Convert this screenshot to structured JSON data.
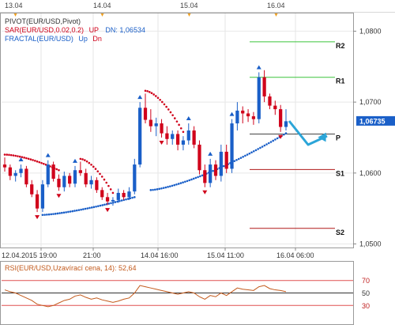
{
  "top_dates": [
    "13.04",
    "14.04",
    "15.04",
    "16.04"
  ],
  "legend": {
    "pivot": "PIVOT(EUR/USD,Pivot)",
    "sar_name": "SAR(EUR/USD,0.02,0.2)",
    "sar_up": "UP",
    "sar_dn": "DN: 1,06534",
    "fractal_name": "FRACTAL(EUR/USD)",
    "fractal_up": "Up",
    "fractal_dn": "Dn"
  },
  "colors": {
    "bull": "#1a5fc8",
    "bear": "#d0021b",
    "sar": "#d0021b",
    "sar_up": "#1a5fc8",
    "fractal": "#1a5fc8",
    "r_lines": "#3cc43c",
    "pivot_line": "#444444",
    "s_lines": "#b01818",
    "rsi_line": "#c35a1c",
    "arrow": "#2ba5d8",
    "price_tag": "#1a5fc8"
  },
  "chart_data": {
    "type": "candlestick",
    "x_tick_labels": [
      "12.04.2015 19:00",
      "21:00",
      "14.04 16:00",
      "15.04 11:00",
      "16.04 06:00"
    ],
    "y_ticks": [
      "1,0800",
      "1,0700",
      "1,0600",
      "1,0500"
    ],
    "ylim": [
      1.0495,
      1.0825
    ],
    "current_price": "1,06735",
    "pivot_levels": [
      {
        "label": "R2",
        "value": 1.0785
      },
      {
        "label": "R1",
        "value": 1.0735
      },
      {
        "label": "P",
        "value": 1.0655
      },
      {
        "label": "S1",
        "value": 1.0605
      },
      {
        "label": "S2",
        "value": 1.0522
      }
    ],
    "candles": [
      [
        1.0612,
        1.0622,
        1.0602,
        1.0608
      ],
      [
        1.0608,
        1.0612,
        1.059,
        1.0596
      ],
      [
        1.0596,
        1.0604,
        1.0588,
        1.06
      ],
      [
        1.06,
        1.0612,
        1.0594,
        1.0606
      ],
      [
        1.0606,
        1.061,
        1.058,
        1.0584
      ],
      [
        1.0584,
        1.059,
        1.0566,
        1.057
      ],
      [
        1.057,
        1.0576,
        1.0545,
        1.055
      ],
      [
        1.055,
        1.059,
        1.0545,
        1.0584
      ],
      [
        1.0584,
        1.0618,
        1.058,
        1.0612
      ],
      [
        1.0612,
        1.0616,
        1.0588,
        1.0592
      ],
      [
        1.0592,
        1.0598,
        1.0575,
        1.058
      ],
      [
        1.058,
        1.0602,
        1.0574,
        1.0596
      ],
      [
        1.0596,
        1.06,
        1.058,
        1.0585
      ],
      [
        1.0585,
        1.061,
        1.058,
        1.0604
      ],
      [
        1.0604,
        1.0616,
        1.0596,
        1.06
      ],
      [
        1.06,
        1.0606,
        1.058,
        1.0584
      ],
      [
        1.0584,
        1.0596,
        1.0578,
        1.059
      ],
      [
        1.059,
        1.0594,
        1.0572,
        1.0576
      ],
      [
        1.0576,
        1.058,
        1.0562,
        1.0566
      ],
      [
        1.0566,
        1.0572,
        1.0555,
        1.056
      ],
      [
        1.056,
        1.0566,
        1.0554,
        1.0562
      ],
      [
        1.0562,
        1.0578,
        1.0558,
        1.0572
      ],
      [
        1.0572,
        1.0576,
        1.0562,
        1.0566
      ],
      [
        1.0566,
        1.058,
        1.0562,
        1.0574
      ],
      [
        1.0574,
        1.062,
        1.057,
        1.0612
      ],
      [
        1.0612,
        1.07,
        1.0608,
        1.0692
      ],
      [
        1.0692,
        1.0712,
        1.067,
        1.0675
      ],
      [
        1.0675,
        1.069,
        1.0658,
        1.0666
      ],
      [
        1.0666,
        1.0678,
        1.0652,
        1.067
      ],
      [
        1.067,
        1.0676,
        1.065,
        1.0656
      ],
      [
        1.0656,
        1.0666,
        1.064,
        1.0648
      ],
      [
        1.0648,
        1.066,
        1.064,
        1.0655
      ],
      [
        1.0655,
        1.066,
        1.0632,
        1.064
      ],
      [
        1.064,
        1.0652,
        1.0632,
        1.0646
      ],
      [
        1.0646,
        1.067,
        1.064,
        1.066
      ],
      [
        1.066,
        1.0666,
        1.0635,
        1.064
      ],
      [
        1.064,
        1.0646,
        1.0598,
        1.0604
      ],
      [
        1.0604,
        1.0612,
        1.058,
        1.0586
      ],
      [
        1.0586,
        1.062,
        1.058,
        1.0612
      ],
      [
        1.0612,
        1.0618,
        1.059,
        1.0596
      ],
      [
        1.0596,
        1.064,
        1.0588,
        1.063
      ],
      [
        1.063,
        1.064,
        1.06,
        1.0606
      ],
      [
        1.0606,
        1.0676,
        1.06,
        1.067
      ],
      [
        1.067,
        1.07,
        1.066,
        1.0688
      ],
      [
        1.0688,
        1.0694,
        1.067,
        1.0684
      ],
      [
        1.0684,
        1.069,
        1.0672,
        1.068
      ],
      [
        1.068,
        1.0686,
        1.0668,
        1.0676
      ],
      [
        1.0676,
        1.0742,
        1.067,
        1.0735
      ],
      [
        1.0735,
        1.0745,
        1.07,
        1.0708
      ],
      [
        1.0708,
        1.0712,
        1.069,
        1.0695
      ],
      [
        1.0695,
        1.0702,
        1.0682,
        1.069
      ],
      [
        1.069,
        1.0696,
        1.0658,
        1.0665
      ],
      [
        1.0665,
        1.069,
        1.066,
        1.0673
      ]
    ],
    "rsi": {
      "label": "RSI(EUR/USD,Uzavírací cena, 14): 52,64",
      "levels": [
        "70",
        "50",
        "30"
      ],
      "ylim": [
        0,
        100
      ],
      "values": [
        55,
        52,
        50,
        46,
        42,
        38,
        32,
        30,
        28,
        30,
        34,
        38,
        40,
        45,
        47,
        43,
        40,
        42,
        39,
        37,
        35,
        37,
        40,
        42,
        50,
        62,
        60,
        58,
        56,
        54,
        52,
        50,
        48,
        50,
        52,
        50,
        44,
        40,
        46,
        44,
        50,
        46,
        52,
        58,
        56,
        55,
        54,
        60,
        62,
        57,
        55,
        54,
        52
      ]
    }
  }
}
